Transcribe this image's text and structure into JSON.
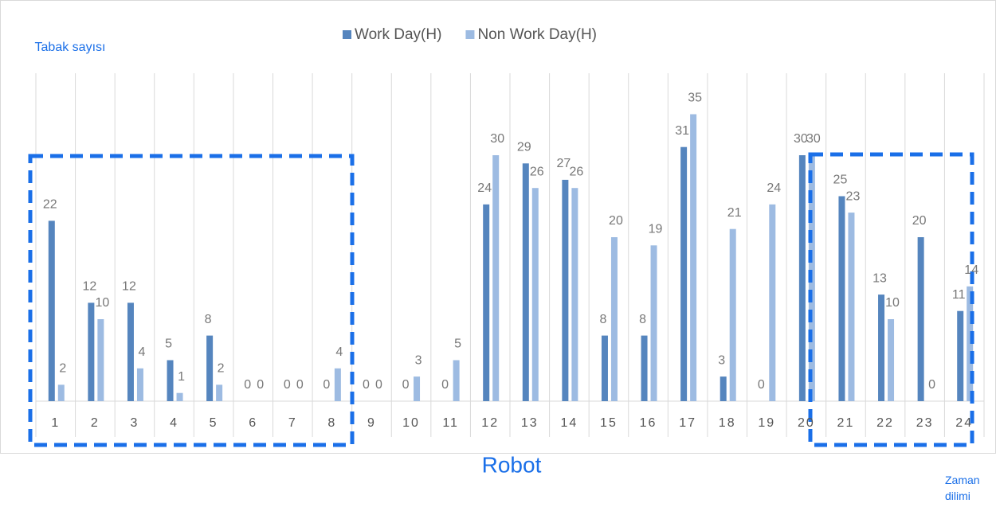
{
  "chart_data": {
    "type": "bar",
    "title": "Robot",
    "y_label": "Tabak sayısı",
    "x_label": "Zaman dilimi",
    "categories": [
      "1",
      "2",
      "3",
      "4",
      "5",
      "6",
      "7",
      "8",
      "9",
      "10",
      "11",
      "12",
      "13",
      "14",
      "15",
      "16",
      "17",
      "18",
      "19",
      "20",
      "21",
      "22",
      "23",
      "24"
    ],
    "series": [
      {
        "name": "Work Day(H)",
        "color": "#5585be",
        "values": [
          22,
          12,
          12,
          5,
          8,
          0,
          0,
          0,
          0,
          0,
          0,
          24,
          29,
          27,
          8,
          8,
          31,
          3,
          0,
          30,
          25,
          13,
          20,
          11
        ]
      },
      {
        "name": "Non Work Day(H)",
        "color": "#9dbbe2",
        "values": [
          2,
          10,
          4,
          1,
          2,
          0,
          0,
          4,
          0,
          3,
          5,
          30,
          26,
          26,
          20,
          19,
          35,
          21,
          24,
          30,
          23,
          10,
          0,
          14
        ]
      }
    ],
    "ylim": [
      0,
      40
    ],
    "legend": "top"
  }
}
